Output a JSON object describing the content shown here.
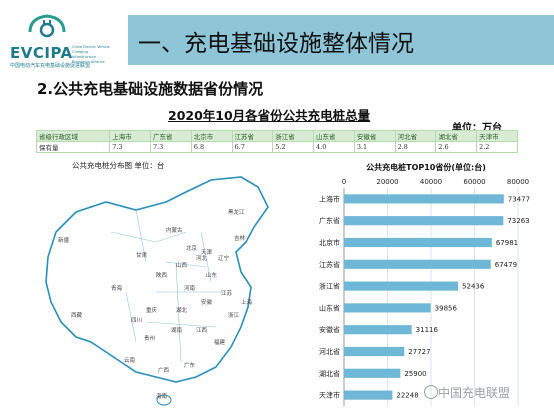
{
  "header": {
    "logo_text": "EVCIPA",
    "logo_subtitle": "中国电动汽车充电基础设施促进联盟",
    "logo_small": "China Electric Vehicle Charging Infrastructure Promotion Alliance",
    "section_title": "一、充电基础设施整体情况"
  },
  "subtitle": "2.公共充电基础设施数据省份情况",
  "table": {
    "title": "2020年10月各省份公共充电桩总量",
    "unit": "单位：万台",
    "header_row": [
      "省级行政区域",
      "上海市",
      "广东省",
      "北京市",
      "江苏省",
      "浙江省",
      "山东省",
      "安徽省",
      "河北省",
      "湖北省",
      "天津市"
    ],
    "value_row": [
      "保有量",
      "7.3",
      "7.3",
      "6.8",
      "6.7",
      "5.2",
      "4.0",
      "3.1",
      "2.8",
      "2.6",
      "2.2"
    ]
  },
  "map": {
    "label": "公共充电桩分布图  单位：台",
    "province_labels": [
      {
        "name": "黑龙江"
      },
      {
        "name": "吉林"
      },
      {
        "name": "辽宁"
      },
      {
        "name": "内蒙古"
      },
      {
        "name": "新疆"
      },
      {
        "name": "西藏"
      },
      {
        "name": "青海"
      },
      {
        "name": "甘肃"
      },
      {
        "name": "四川"
      },
      {
        "name": "云南"
      },
      {
        "name": "广西"
      },
      {
        "name": "海南"
      },
      {
        "name": "广东"
      },
      {
        "name": "福建"
      },
      {
        "name": "浙江"
      },
      {
        "name": "江苏"
      },
      {
        "name": "山东"
      },
      {
        "name": "河北"
      },
      {
        "name": "北京"
      },
      {
        "name": "天津"
      },
      {
        "name": "河南"
      },
      {
        "name": "湖北"
      },
      {
        "name": "湖南"
      },
      {
        "name": "贵州"
      },
      {
        "name": "重庆"
      },
      {
        "name": "陕西"
      },
      {
        "name": "山西"
      },
      {
        "name": "安徽"
      },
      {
        "name": "江西"
      },
      {
        "name": "上海"
      }
    ]
  },
  "chart_data": {
    "type": "bar",
    "orientation": "horizontal",
    "title": "公共充电桩TOP10省份(单位:台)",
    "categories": [
      "上海市",
      "广东省",
      "北京市",
      "江苏省",
      "浙江省",
      "山东省",
      "安徽省",
      "河北省",
      "湖北省",
      "天津市"
    ],
    "values": [
      73477,
      73263,
      67981,
      67479,
      52436,
      39856,
      31116,
      27727,
      25900,
      22248
    ],
    "xlim": [
      0,
      80000
    ],
    "xticks": [
      "0",
      "20000",
      "40000",
      "60000",
      "80000"
    ],
    "bar_color": "#6fb7d6",
    "grid": true
  },
  "watermark": "中国充电联盟"
}
